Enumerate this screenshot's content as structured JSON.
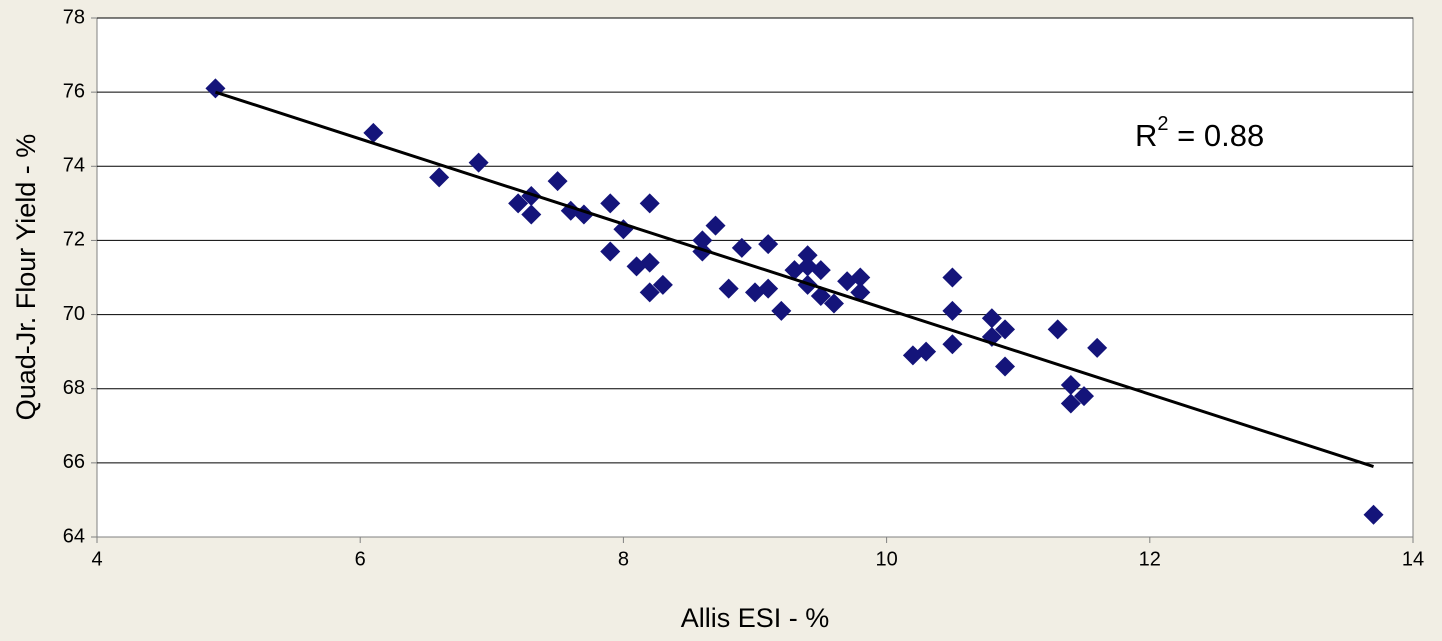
{
  "chart_data": {
    "type": "scatter",
    "x_label": "Allis ESI - %",
    "y_label": "Quad-Jr. Flour Yield - %",
    "annotation": {
      "base": "R",
      "superscript": "2",
      "rest": " = 0.88"
    },
    "color": "#14147a",
    "x": [
      4.9,
      6.1,
      6.6,
      6.9,
      7.5,
      7.2,
      7.3,
      7.3,
      7.6,
      7.7,
      7.9,
      8.2,
      8.0,
      7.9,
      8.1,
      8.2,
      8.2,
      8.3,
      8.7,
      8.6,
      8.6,
      8.9,
      8.8,
      9.1,
      9.0,
      9.1,
      9.2,
      9.3,
      9.4,
      9.5,
      9.4,
      9.5,
      9.6,
      9.4,
      9.7,
      9.8,
      9.8,
      10.5,
      10.5,
      10.5,
      10.2,
      10.3,
      10.8,
      10.9,
      10.8,
      10.9,
      11.3,
      11.6,
      11.4,
      11.4,
      11.5,
      13.7
    ],
    "values": [
      76.1,
      74.9,
      73.7,
      74.1,
      73.6,
      73.0,
      73.2,
      72.7,
      72.8,
      72.7,
      73.0,
      73.0,
      72.3,
      71.7,
      71.3,
      71.4,
      70.6,
      70.8,
      72.4,
      72.0,
      71.7,
      71.8,
      70.7,
      71.9,
      70.6,
      70.7,
      70.1,
      71.2,
      71.6,
      71.2,
      70.8,
      70.5,
      70.3,
      71.3,
      70.9,
      71.0,
      70.6,
      71.0,
      70.1,
      69.2,
      68.9,
      69.0,
      69.9,
      69.6,
      69.4,
      68.6,
      69.6,
      69.1,
      68.1,
      67.6,
      67.8,
      64.6
    ],
    "trendline": {
      "x": [
        4.9,
        13.7
      ],
      "values": [
        76.0,
        65.9
      ],
      "color": "#000000"
    },
    "xlim": [
      4,
      14
    ],
    "xticks": [
      4,
      6,
      8,
      10,
      12,
      14
    ],
    "ylim": [
      64,
      78
    ],
    "yticks": [
      64,
      66,
      68,
      70,
      72,
      74,
      76,
      78
    ],
    "grid": true
  }
}
